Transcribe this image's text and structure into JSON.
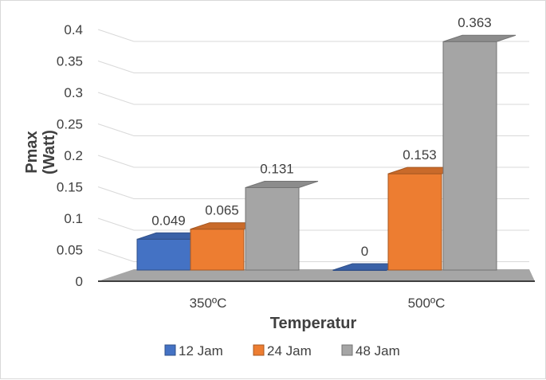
{
  "chart_data": {
    "type": "bar",
    "categories": [
      "350ºC",
      "500ºC"
    ],
    "series": [
      {
        "name": "12 Jam",
        "values": [
          0.049,
          0
        ],
        "color": "#4472c4"
      },
      {
        "name": "24 Jam",
        "values": [
          0.065,
          0.153
        ],
        "color": "#ed7d31"
      },
      {
        "name": "48 Jam",
        "values": [
          0.131,
          0.363
        ],
        "color": "#a5a5a5"
      }
    ],
    "data_labels": [
      [
        "0.049",
        "0"
      ],
      [
        "0.065",
        "0.153"
      ],
      [
        "0.131",
        "0.363"
      ]
    ],
    "y_ticks": [
      "0",
      "0.05",
      "0.1",
      "0.15",
      "0.2",
      "0.25",
      "0.3",
      "0.35",
      "0.4"
    ],
    "ylim": [
      0,
      0.4
    ],
    "xlabel": "Temperatur",
    "ylabel": "Pmax (Watt)",
    "ylabel_lines": [
      "Pmax",
      "(Watt)"
    ],
    "legend_position": "bottom",
    "grid": true,
    "style": "3d-clustered-column"
  }
}
